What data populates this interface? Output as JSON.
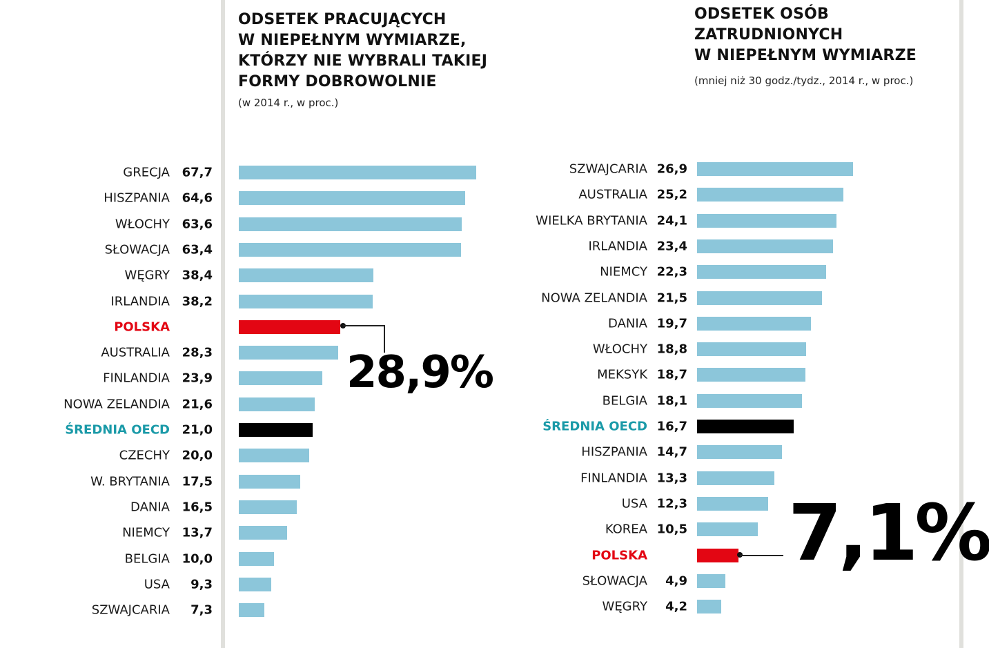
{
  "colors": {
    "bar": "#8cc6da",
    "highlight": "#e30613",
    "average": "#000000",
    "average_label": "#1a9aa8",
    "highlight_label": "#e30613"
  },
  "chart_data": [
    {
      "type": "bar",
      "orientation": "horizontal",
      "title": "ODSETEK PRACUJĄCYCH W NIEPEŁNYM WYMIARZE, KTÓRZY NIE WYBRALI TAKIEJ FORMY DOBROWOLNIE",
      "title_lines": [
        "ODSETEK PRACUJĄCYCH",
        "W NIEPEŁNYM WYMIARZE,",
        "KTÓRZY NIE WYBRALI TAKIEJ",
        "FORMY DOBROWOLNIE"
      ],
      "subtitle": "(w 2014 r., w proc.)",
      "callout": "28,9%",
      "categories": [
        "GRECJA",
        "HISZPANIA",
        "WŁOCHY",
        "SŁOWACJA",
        "WĘGRY",
        "IRLANDIA",
        "POLSKA",
        "AUSTRALIA",
        "FINLANDIA",
        "NOWA ZELANDIA",
        "ŚREDNIA OECD",
        "CZECHY",
        "W. BRYTANIA",
        "DANIA",
        "NIEMCY",
        "BELGIA",
        "USA",
        "SZWAJCARIA"
      ],
      "values": [
        67.7,
        64.6,
        63.6,
        63.4,
        38.4,
        38.2,
        28.9,
        28.3,
        23.9,
        21.6,
        21.0,
        20.0,
        17.5,
        16.5,
        13.7,
        10.0,
        9.3,
        7.3
      ],
      "value_labels": [
        "67,7",
        "64,6",
        "63,6",
        "63,4",
        "38,4",
        "38,2",
        "",
        "28,3",
        "23,9",
        "21,6",
        "21,0",
        "20,0",
        "17,5",
        "16,5",
        "13,7",
        "10,0",
        "9,3",
        "7,3"
      ],
      "highlight": "POLSKA",
      "average": "ŚREDNIA OECD"
    },
    {
      "type": "bar",
      "orientation": "horizontal",
      "title": "ODSETEK OSÓB ZATRUDNIONYCH W NIEPEŁNYM WYMIARZE",
      "title_lines": [
        "ODSETEK OSÓB",
        "ZATRUDNIONYCH",
        "W NIEPEŁNYM WYMIARZE"
      ],
      "subtitle": "(mniej niż 30 godz./tydz., 2014 r., w proc.)",
      "callout": "7,1%",
      "categories": [
        "SZWAJCARIA",
        "AUSTRALIA",
        "WIELKA BRYTANIA",
        "IRLANDIA",
        "NIEMCY",
        "NOWA ZELANDIA",
        "DANIA",
        "WŁOCHY",
        "MEKSYK",
        "BELGIA",
        "ŚREDNIA OECD",
        "HISZPANIA",
        "FINLANDIA",
        "USA",
        "KOREA",
        "POLSKA",
        "SŁOWACJA",
        "WĘGRY"
      ],
      "values": [
        26.9,
        25.2,
        24.1,
        23.4,
        22.3,
        21.5,
        19.7,
        18.8,
        18.7,
        18.1,
        16.7,
        14.7,
        13.3,
        12.3,
        10.5,
        7.1,
        4.9,
        4.2
      ],
      "value_labels": [
        "26,9",
        "25,2",
        "24,1",
        "23,4",
        "22,3",
        "21,5",
        "19,7",
        "18,8",
        "18,7",
        "18,1",
        "16,7",
        "14,7",
        "13,3",
        "12,3",
        "10,5",
        "",
        "4,9",
        "4,2"
      ],
      "highlight": "POLSKA",
      "average": "ŚREDNIA OECD"
    }
  ]
}
